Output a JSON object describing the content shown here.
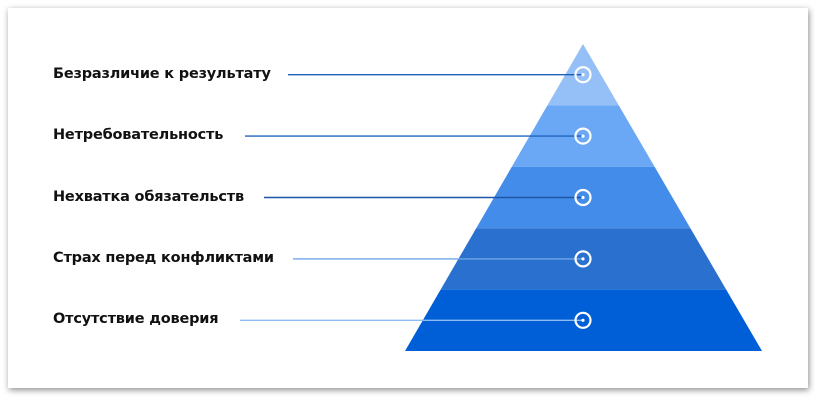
{
  "levels": [
    {
      "label": "Безразличие к результату",
      "color": "#95c0f7",
      "line_color": "#1f5fb8"
    },
    {
      "label": "Нетребовательность",
      "color": "#6aa8f5",
      "line_color": "#2163c0"
    },
    {
      "label": "Нехватка обязательств",
      "color": "#448ce9",
      "line_color": "#1d56a8"
    },
    {
      "label": "Страх перед конфликтами",
      "color": "#2a70cf",
      "line_color": "#6ea6e8"
    },
    {
      "label": "Отсутствие доверия",
      "color": "#005fd6",
      "line_color": "#8dbcf0"
    }
  ],
  "marker_icon": "target-ring-icon"
}
